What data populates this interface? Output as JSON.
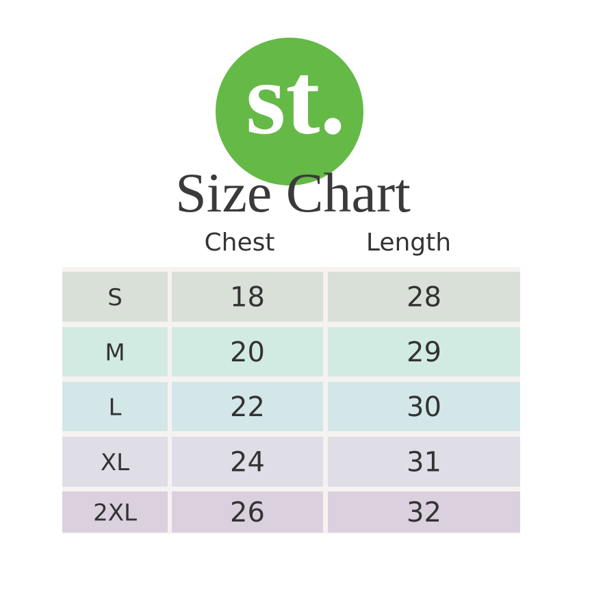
{
  "logo": "st.",
  "title": "Size Chart",
  "table": {
    "columns": [
      "Chest",
      "Length"
    ],
    "rows": [
      [
        "S",
        18,
        28
      ],
      [
        "M",
        20,
        29
      ],
      [
        "L",
        22,
        30
      ],
      [
        "XL",
        24,
        31
      ],
      [
        "2XL",
        26,
        32
      ]
    ],
    "row_colors": [
      "#d8e0d8",
      "#d2ebe2",
      "#d3e6e8",
      "#dfdde6",
      "#dad0de"
    ]
  }
}
